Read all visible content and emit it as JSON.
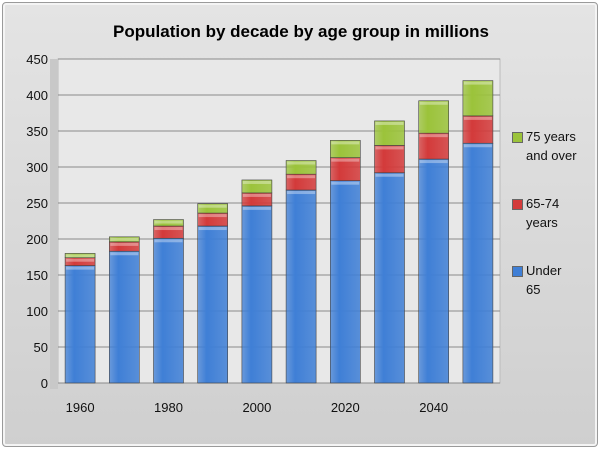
{
  "chart_data": {
    "type": "bar",
    "stacked": true,
    "title": "Population by decade by age group in millions",
    "xlabel": "",
    "ylabel": "",
    "categories": [
      "1960",
      "1970",
      "1980",
      "1990",
      "2000",
      "2010",
      "2020",
      "2030",
      "2040",
      "2050"
    ],
    "x_tick_labels": [
      "1960",
      "1980",
      "2000",
      "2020",
      "2040"
    ],
    "y_ticks": [
      "0",
      "50",
      "100",
      "150",
      "200",
      "250",
      "300",
      "350",
      "400",
      "450"
    ],
    "ylim": [
      0,
      450
    ],
    "grid": true,
    "legend_position": "right",
    "series": [
      {
        "name": "Under 65",
        "legend_lines": [
          "Under",
          "65"
        ],
        "color": "#3f7fd6",
        "values": [
          163,
          183,
          201,
          218,
          246,
          268,
          281,
          292,
          311,
          333
        ]
      },
      {
        "name": "65-74 years",
        "legend_lines": [
          "65-74",
          "years"
        ],
        "color": "#d33a3a",
        "values": [
          11,
          13,
          17,
          18,
          18,
          22,
          32,
          38,
          36,
          38
        ]
      },
      {
        "name": "75 years and over",
        "legend_lines": [
          "75 years",
          "and over"
        ],
        "color": "#9bc33a",
        "values": [
          6,
          7,
          9,
          13,
          18,
          19,
          24,
          34,
          45,
          49
        ]
      }
    ]
  }
}
